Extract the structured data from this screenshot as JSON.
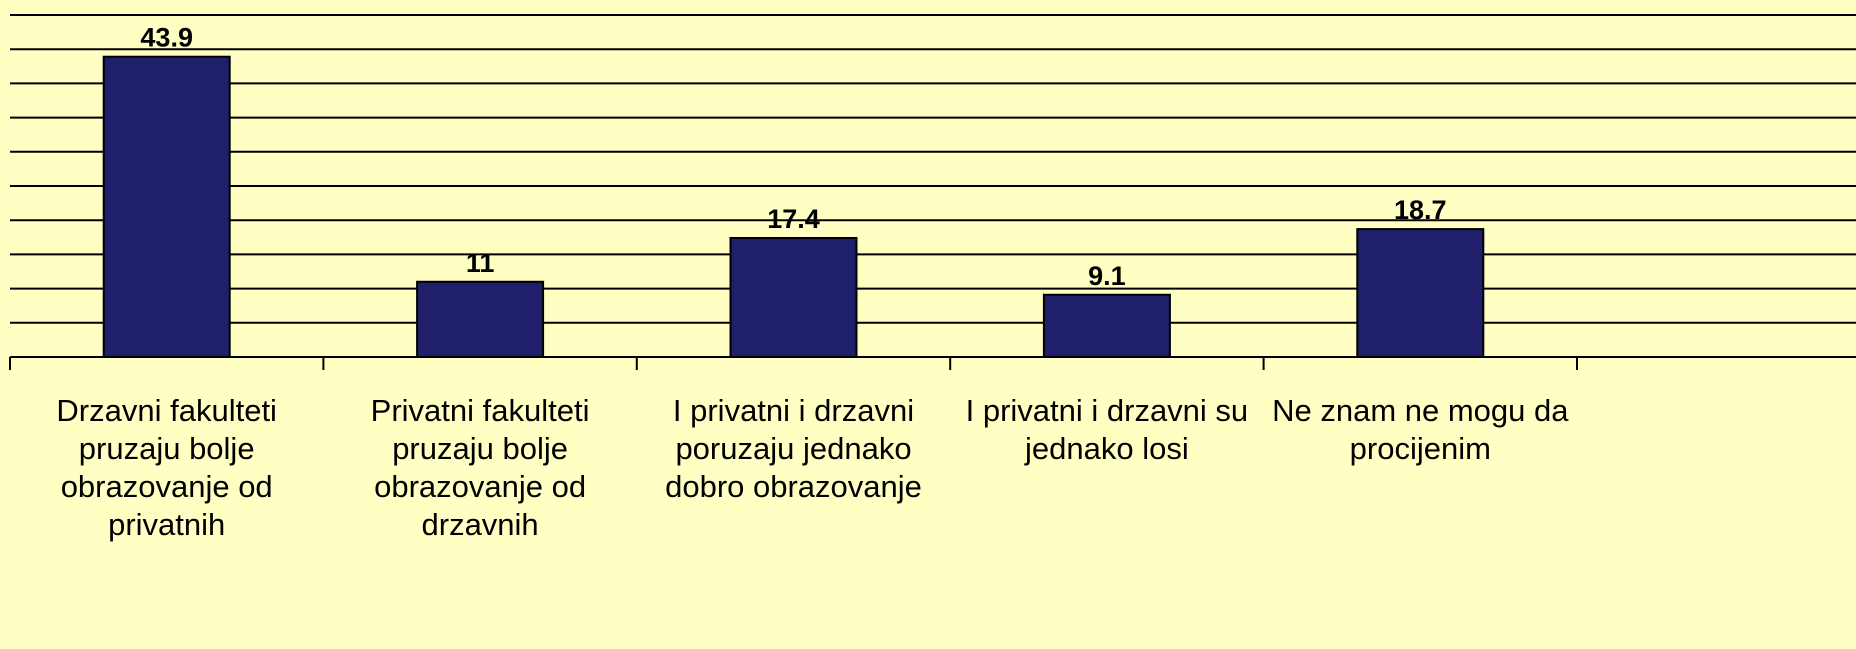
{
  "chart_data": {
    "type": "bar",
    "categories": [
      "Drzavni fakulteti pruzaju bolje obrazovanje od privatnih",
      "Privatni fakulteti pruzaju bolje obrazovanje od drzavnih",
      "I privatni i drzavni poruzaju jednako dobro obrazovanje",
      "I privatni i drzavni su jednako losi",
      "Ne znam ne mogu da procijenim"
    ],
    "values": [
      43.9,
      11,
      17.4,
      9.1,
      18.7
    ],
    "color": "#1f1f6b",
    "ylim": [
      0,
      50
    ],
    "yticks": [
      0,
      5,
      10,
      15,
      20,
      25,
      30,
      35,
      40,
      45,
      50
    ],
    "grid": true
  }
}
